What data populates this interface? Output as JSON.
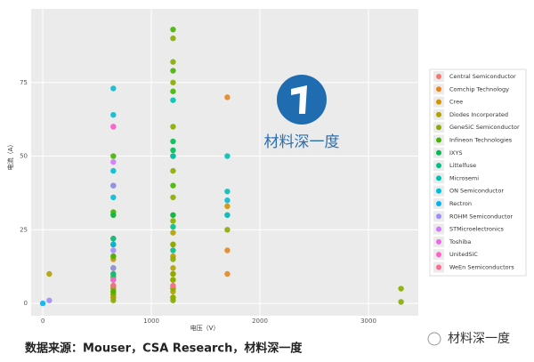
{
  "chart_data": {
    "type": "scatter",
    "xlabel": "电压（V）",
    "ylabel": "电流（A）",
    "xlim": [
      -107,
      3459
    ],
    "ylim": [
      -4.2,
      100
    ],
    "xticks": [
      0,
      1000,
      2000,
      3000
    ],
    "yticks": [
      0,
      25,
      50,
      75
    ],
    "grid": true,
    "legend": "right",
    "series": [
      {
        "name": "Central Semiconductor",
        "color": "#F8766D",
        "x": [
          650
        ],
        "values": [
          2
        ]
      },
      {
        "name": "Comchip Technology",
        "color": "#E7851E",
        "x": [
          1700,
          1700,
          1700,
          650,
          650,
          650,
          650,
          1200
        ],
        "values": [
          70,
          18,
          10,
          3,
          4,
          6,
          8,
          5
        ]
      },
      {
        "name": "Cree",
        "color": "#D09400",
        "x": [
          650,
          650,
          650,
          650,
          1200,
          1200,
          1200,
          1700
        ],
        "values": [
          10,
          15,
          22,
          30,
          20,
          30,
          10,
          33
        ]
      },
      {
        "name": "Diodes Incorporated",
        "color": "#B2A100",
        "x": [
          60,
          650,
          650,
          650,
          650,
          650,
          650,
          1200,
          1200,
          1200,
          1200,
          1200,
          1200,
          1200
        ],
        "values": [
          10,
          2,
          5,
          8,
          12,
          16,
          20,
          2,
          4,
          6,
          8,
          12,
          16,
          24
        ]
      },
      {
        "name": "GeneSiC Semiconductor",
        "color": "#89AC00",
        "x": [
          650,
          650,
          650,
          1200,
          1200,
          1200,
          1200,
          1200,
          1200,
          1200,
          1200,
          1200,
          1200,
          1200,
          1200,
          1200,
          1200,
          1700,
          1700,
          3300,
          3300
        ],
        "values": [
          1,
          3,
          5,
          1,
          2,
          5,
          8,
          10,
          15,
          20,
          28,
          36,
          45,
          60,
          75,
          82,
          90,
          25,
          30,
          0.5,
          5
        ]
      },
      {
        "name": "Infineon Technologies",
        "color": "#45B500",
        "x": [
          1200,
          1200,
          1200,
          1200,
          1200,
          650,
          650,
          650,
          650,
          650,
          650,
          650,
          650,
          650
        ],
        "values": [
          93,
          72,
          79,
          50,
          40,
          4,
          6,
          9,
          12,
          16,
          20,
          31,
          40,
          50
        ]
      },
      {
        "name": "IXYS",
        "color": "#00BC51",
        "x": [
          650,
          1200,
          1200,
          1200
        ],
        "values": [
          30,
          55,
          52,
          30
        ]
      },
      {
        "name": "Littelfuse",
        "color": "#00C087",
        "x": [
          650,
          650,
          1200,
          1200
        ],
        "values": [
          10,
          22,
          18,
          26
        ]
      },
      {
        "name": "Microsemi",
        "color": "#00C0B2",
        "x": [
          1200,
          1200,
          1700,
          1700
        ],
        "values": [
          69,
          50,
          50,
          38
        ]
      },
      {
        "name": "ON Semiconductor",
        "color": "#00BCD6",
        "x": [
          650,
          650,
          650,
          650,
          1700,
          1700
        ],
        "values": [
          73,
          64,
          45,
          36,
          35,
          30
        ]
      },
      {
        "name": "Rectron",
        "color": "#00B3F2",
        "x": [
          0,
          650
        ],
        "values": [
          0,
          20
        ]
      },
      {
        "name": "ROHM Semiconductor",
        "color": "#9C8DFF",
        "x": [
          60,
          650,
          650,
          650
        ],
        "values": [
          1,
          40,
          12,
          18
        ]
      },
      {
        "name": "STMicroelectronics",
        "color": "#D277FF",
        "x": [
          650,
          650
        ],
        "values": [
          60,
          48
        ]
      },
      {
        "name": "Toshiba",
        "color": "#F166E8",
        "x": [
          650
        ],
        "values": [
          8
        ]
      },
      {
        "name": "UnitedSiC",
        "color": "#FF61C7",
        "x": [
          650
        ],
        "values": [
          60
        ]
      },
      {
        "name": "WeEn Semiconductors",
        "color": "#FF6C91",
        "x": [
          650,
          1200
        ],
        "values": [
          6,
          6
        ]
      }
    ]
  },
  "footer": {
    "source": "数据来源：Mouser，CSA Research，材料深一度",
    "watermark": "材料深一度",
    "wechat": "材料深一度"
  }
}
